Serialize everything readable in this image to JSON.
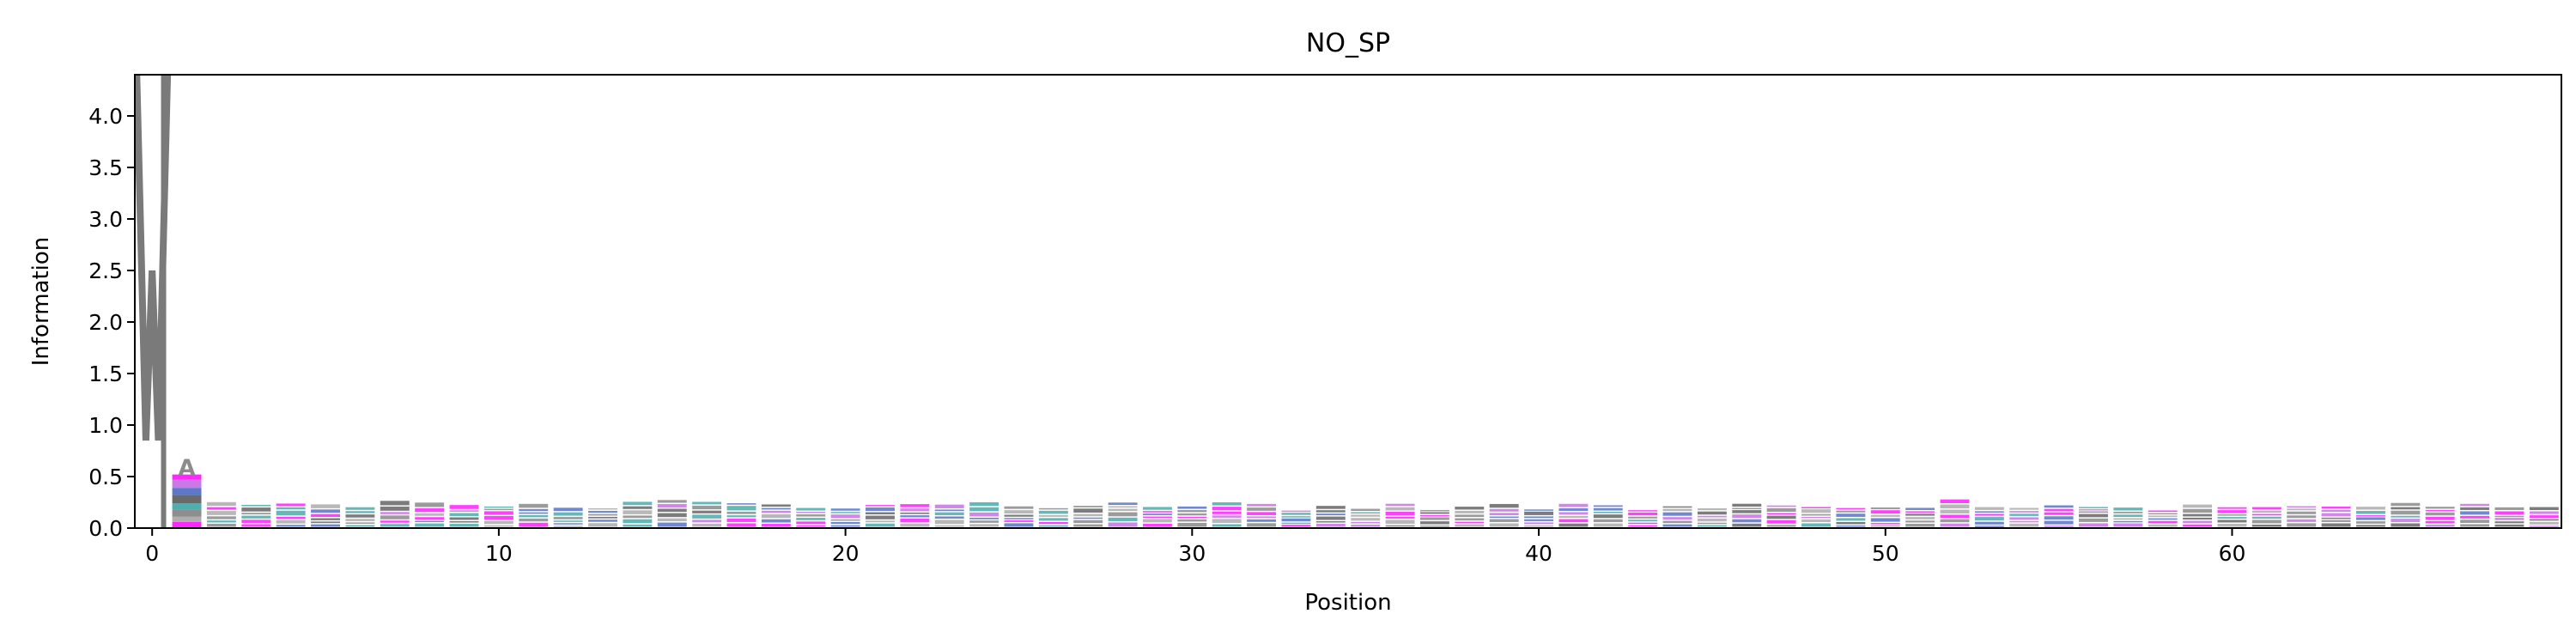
{
  "chart_data": {
    "type": "sequence-logo",
    "title": "NO_SP",
    "xlabel": "Position",
    "ylabel": "Information",
    "xlim": [
      -0.5,
      69.5
    ],
    "ylim": [
      0,
      4.4
    ],
    "x_ticks": [
      0,
      10,
      20,
      30,
      40,
      50,
      60
    ],
    "y_ticks": [
      0.0,
      0.5,
      1.0,
      1.5,
      2.0,
      2.5,
      3.0,
      3.5,
      4.0
    ],
    "y_tick_labels": [
      "0.0",
      "0.5",
      "1.0",
      "1.5",
      "2.0",
      "2.5",
      "3.0",
      "3.5",
      "4.0"
    ],
    "position_0": {
      "letter": "W",
      "height": 4.4
    },
    "position_1": {
      "top_letter": "A",
      "total_height": 0.58
    },
    "positions_2_to_69_total_height": 0.24,
    "letter_colors": [
      "#7a7a7a",
      "#ff00ff",
      "#4060c0",
      "#30a0a0",
      "#a0a0a0",
      "#c060e0",
      "#505050"
    ]
  }
}
